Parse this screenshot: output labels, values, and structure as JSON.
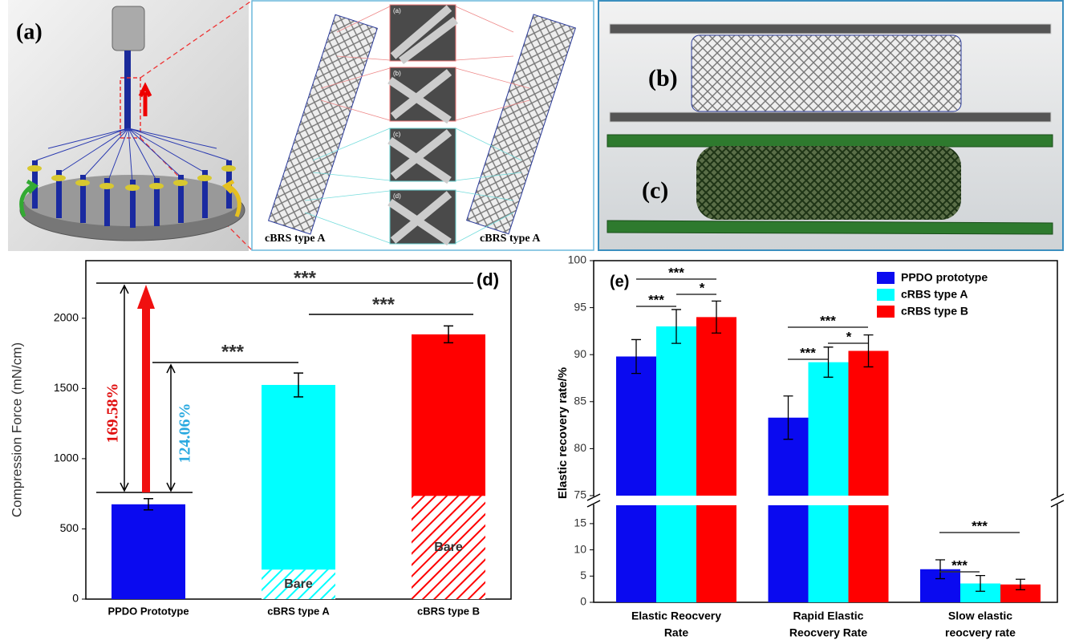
{
  "panels": {
    "a": {
      "label": "(a)",
      "captions": [
        "cBRS type A",
        "cBRS type A"
      ],
      "micrograph_labels": [
        "(a)",
        "(b)",
        "(c)",
        "(d)"
      ]
    },
    "b": {
      "label": "(b)"
    },
    "c": {
      "label": "(c)"
    }
  },
  "chart_data": [
    {
      "type": "bar",
      "label": "(d)",
      "y_label": "Compression Force (mN/cm)",
      "categories": [
        "PPDO Prototype",
        "cBRS type A",
        "cBRS type B"
      ],
      "values": [
        675,
        1525,
        1885
      ],
      "errors": [
        40,
        85,
        60
      ],
      "colors": [
        "#0a0af0",
        "#00ffff",
        "#ff0000"
      ],
      "bare": {
        "name": "Bare",
        "values": [
          null,
          210,
          735
        ]
      },
      "ylim": [
        0,
        2410
      ],
      "yticks": [
        0,
        500,
        1000,
        1500,
        2000
      ],
      "annotations": [
        "***",
        "***",
        "***",
        "169.58%",
        "124.06%"
      ]
    },
    {
      "type": "bar",
      "label": "(e)",
      "y_label": "Elastic recovery rate/%",
      "axis_break": true,
      "categories": [
        [
          "Elastic Reocvery",
          "Rate"
        ],
        [
          "Rapid Elastic",
          "Reocvery Rate"
        ],
        [
          "Slow elastic",
          "reocvery rate"
        ]
      ],
      "series": [
        {
          "name": "PPDO prototype",
          "color": "#0a0af0",
          "values": [
            89.8,
            83.3,
            6.3
          ],
          "errors": [
            1.8,
            2.3,
            1.8
          ]
        },
        {
          "name": "cRBS type A",
          "color": "#00ffff",
          "values": [
            93.0,
            89.2,
            3.6
          ],
          "errors": [
            1.8,
            1.6,
            1.5
          ]
        },
        {
          "name": "cRBS type B",
          "color": "#ff0000",
          "values": [
            94.0,
            90.4,
            3.4
          ],
          "errors": [
            1.7,
            1.7,
            1.0
          ]
        }
      ],
      "ylim": [
        75,
        100
      ],
      "yticks": [
        75,
        80,
        85,
        90,
        95,
        100
      ],
      "lower_ylim": [
        0,
        18.5
      ],
      "lower_yticks": [
        0,
        5,
        10,
        15
      ],
      "legend": "upper right",
      "annotations": [
        "***",
        "*",
        "***",
        "***",
        "*",
        "***",
        "***",
        "***"
      ]
    }
  ]
}
